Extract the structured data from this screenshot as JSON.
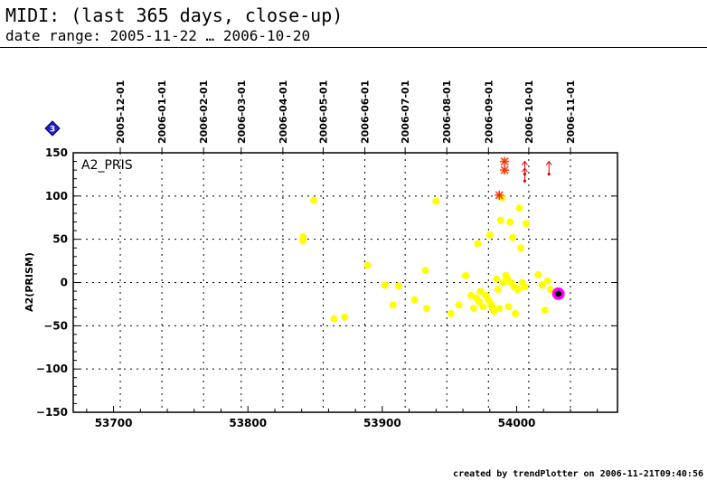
{
  "header": {
    "title": "MIDI: (last 365 days, close-up)",
    "subtitle": "date range: 2005-11-22 … 2006-10-20"
  },
  "footer": {
    "credit": "created by trendPlotter on 2006-11-21T09:40:56"
  },
  "badge": {
    "label": "3",
    "color": "#2020d0"
  },
  "chart_data": {
    "type": "scatter",
    "panel_label": "A2_PRIS",
    "ylabel": "A2(PRISM)",
    "xlim": [
      53670,
      54075
    ],
    "ylim": [
      -150,
      150
    ],
    "x_ticks": [
      53700,
      53800,
      53900,
      54000
    ],
    "y_ticks": [
      -150,
      -100,
      -50,
      0,
      50,
      100,
      150
    ],
    "y_grid": [
      -100,
      -50,
      0,
      50,
      100
    ],
    "date_ticks": [
      {
        "label": "2005-12-01",
        "mjd": 53705
      },
      {
        "label": "2006-01-01",
        "mjd": 53736
      },
      {
        "label": "2006-02-01",
        "mjd": 53767
      },
      {
        "label": "2006-03-01",
        "mjd": 53795
      },
      {
        "label": "2006-04-01",
        "mjd": 53826
      },
      {
        "label": "2006-05-01",
        "mjd": 53856
      },
      {
        "label": "2006-06-01",
        "mjd": 53887
      },
      {
        "label": "2006-07-01",
        "mjd": 53917
      },
      {
        "label": "2006-08-01",
        "mjd": 53948
      },
      {
        "label": "2006-09-01",
        "mjd": 53979
      },
      {
        "label": "2006-10-01",
        "mjd": 54009
      },
      {
        "label": "2006-11-01",
        "mjd": 54040
      }
    ],
    "grid": true,
    "colors": {
      "points": "#ffff00",
      "stars": "#ff3300",
      "arrows": "#dd0000",
      "highlight": "#ff00ff"
    },
    "series": [
      {
        "values": [
          [
            53841,
            53
          ],
          [
            53841,
            48
          ],
          [
            53849,
            95
          ],
          [
            53864,
            -42
          ],
          [
            53872,
            -40
          ],
          [
            53889,
            20
          ],
          [
            53902,
            -3
          ],
          [
            53908,
            -26
          ],
          [
            53912,
            -4
          ],
          [
            53924,
            -20
          ],
          [
            53932,
            14
          ],
          [
            53933,
            -30
          ],
          [
            53940,
            94
          ],
          [
            53951,
            -36
          ],
          [
            53957,
            -26
          ],
          [
            53962,
            8
          ],
          [
            53966,
            -15
          ],
          [
            53968,
            -30
          ],
          [
            53970,
            -18
          ],
          [
            53971,
            45
          ],
          [
            53972,
            -22
          ],
          [
            53973,
            -10
          ],
          [
            53975,
            -28
          ],
          [
            53977,
            -15
          ],
          [
            53979,
            -20
          ],
          [
            53980,
            55
          ],
          [
            53981,
            -25
          ],
          [
            53982,
            -30
          ],
          [
            53983,
            -33
          ],
          [
            53985,
            4
          ],
          [
            53986,
            -8
          ],
          [
            53987,
            -30
          ],
          [
            53988,
            72
          ],
          [
            53989,
            98
          ],
          [
            53990,
            0
          ],
          [
            53992,
            8
          ],
          [
            53993,
            5
          ],
          [
            53994,
            -28
          ],
          [
            53995,
            70
          ],
          [
            53996,
            0
          ],
          [
            53997,
            52
          ],
          [
            53998,
            -5
          ],
          [
            53999,
            -36
          ],
          [
            54001,
            -8
          ],
          [
            54002,
            86
          ],
          [
            54003,
            40
          ],
          [
            54004,
            0
          ],
          [
            54006,
            -5
          ],
          [
            54007,
            68
          ],
          [
            54016,
            9
          ],
          [
            54019,
            -3
          ],
          [
            54021,
            -32
          ],
          [
            54023,
            2
          ],
          [
            54025,
            -8
          ]
        ]
      },
      {
        "values": [
          [
            53987,
            101
          ],
          [
            53991,
            140
          ],
          [
            53991,
            130
          ]
        ]
      },
      {
        "values": [
          [
            54006,
            140
          ],
          [
            54006,
            132
          ],
          [
            54024,
            140
          ]
        ]
      },
      {
        "values": [
          [
            54031,
            -13
          ]
        ]
      }
    ]
  }
}
